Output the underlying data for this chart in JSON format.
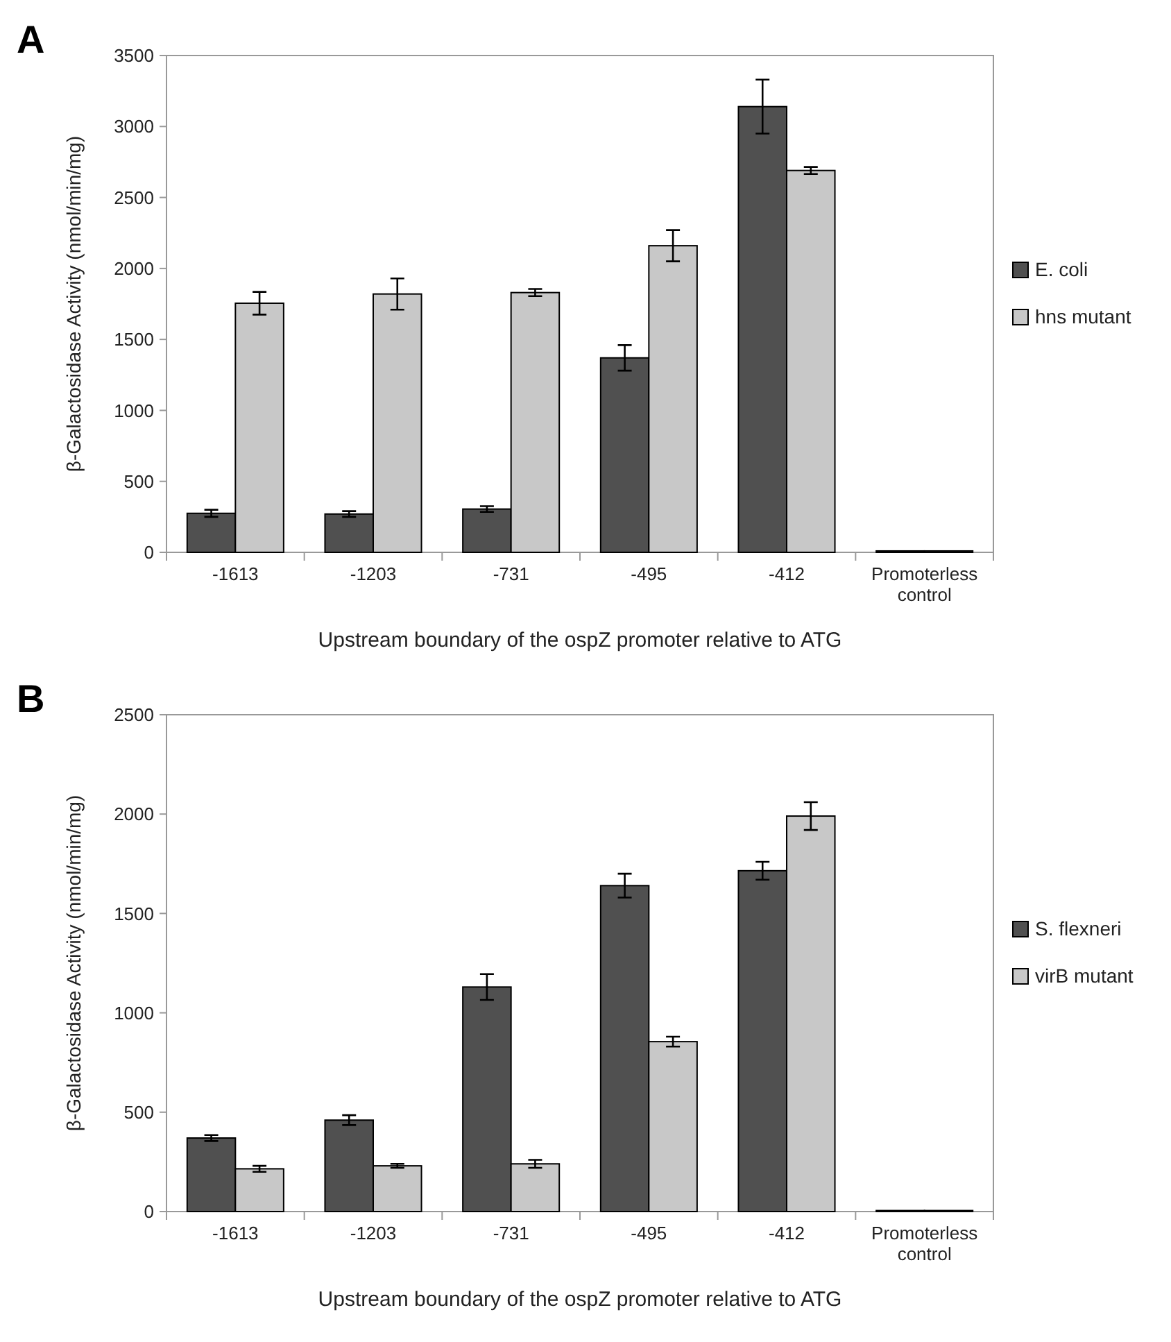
{
  "chart_data": [
    {
      "type": "bar",
      "title": "A",
      "xlabel": "Upstream boundary of the ospZ promoter relative to ATG",
      "ylabel": "β-Galactosidase Activity (nmol/min/mg)",
      "categories": [
        "-1613",
        "-1203",
        "-731",
        "-495",
        "-412",
        "Promoterless control"
      ],
      "ylim": [
        0,
        3500
      ],
      "yticks": [
        0,
        500,
        1000,
        1500,
        2000,
        2500,
        3000,
        3500
      ],
      "legend": "right",
      "grid": false,
      "series": [
        {
          "name": "E. coli",
          "color": "#505050",
          "values": [
            275,
            270,
            305,
            1370,
            3140,
            10
          ],
          "errors": [
            25,
            20,
            20,
            90,
            190,
            null
          ]
        },
        {
          "name": "hns mutant",
          "color": "#c8c8c8",
          "values": [
            1755,
            1820,
            1830,
            2160,
            2690,
            10
          ],
          "errors": [
            80,
            110,
            25,
            110,
            25,
            null
          ]
        }
      ]
    },
    {
      "type": "bar",
      "title": "B",
      "xlabel": "Upstream boundary of the ospZ promoter relative to ATG",
      "ylabel": "β-Galactosidase Activity (nmol/min/mg)",
      "categories": [
        "-1613",
        "-1203",
        "-731",
        "-495",
        "-412",
        "Promoterless control"
      ],
      "ylim": [
        0,
        2500
      ],
      "yticks": [
        0,
        500,
        1000,
        1500,
        2000,
        2500
      ],
      "legend": "right",
      "grid": false,
      "series": [
        {
          "name": "S. flexneri",
          "color": "#505050",
          "values": [
            370,
            460,
            1130,
            1640,
            1715,
            5
          ],
          "errors": [
            15,
            25,
            65,
            60,
            45,
            null
          ]
        },
        {
          "name": "virB mutant",
          "color": "#c8c8c8",
          "values": [
            215,
            230,
            240,
            855,
            1990,
            5
          ],
          "errors": [
            15,
            10,
            20,
            25,
            70,
            null
          ]
        }
      ]
    }
  ]
}
